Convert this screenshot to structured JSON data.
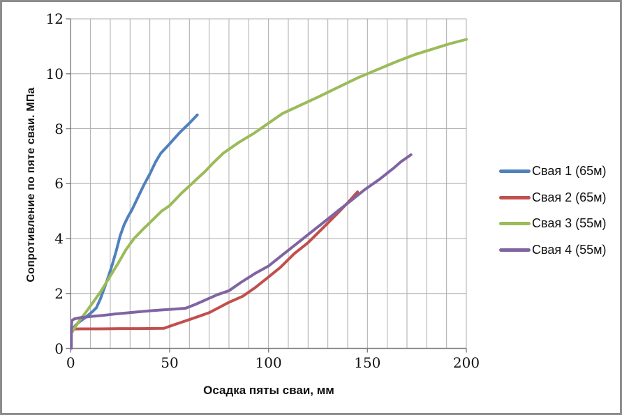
{
  "window": {
    "background_color": "#FFFFFF",
    "border_color": "#8C8C8C"
  },
  "chart_data": {
    "type": "line",
    "title": "",
    "xlabel": "Осадка пяты сваи, мм",
    "ylabel": "Сопротивление по пяте сваи. МПа",
    "xlim": [
      0,
      200
    ],
    "ylim": [
      0,
      12
    ],
    "x_ticks": [
      0,
      50,
      100,
      150,
      200
    ],
    "y_ticks": [
      0,
      2,
      4,
      6,
      8,
      10,
      12
    ],
    "x_tick_labels": [
      "0",
      "50",
      "100",
      "150",
      "200"
    ],
    "y_tick_labels": [
      "0",
      "2",
      "4",
      "6",
      "8",
      "10",
      "12"
    ],
    "x_minor_grid_step": 10,
    "y_major_grid_step": 2,
    "grid": true,
    "grid_color": "#ABABAB",
    "axis_color": "#7F7F7F",
    "legend_position": "right",
    "series": [
      {
        "name": "Свая 1 (65м)",
        "color": "#4F81BD",
        "points": [
          [
            0.5,
            0.62
          ],
          [
            1,
            0.72
          ],
          [
            3,
            0.88
          ],
          [
            5,
            1.0
          ],
          [
            7,
            1.1
          ],
          [
            9,
            1.22
          ],
          [
            11,
            1.34
          ],
          [
            13,
            1.48
          ],
          [
            15,
            1.8
          ],
          [
            17,
            2.2
          ],
          [
            19,
            2.6
          ],
          [
            21,
            3.05
          ],
          [
            23,
            3.55
          ],
          [
            25,
            4.1
          ],
          [
            27,
            4.5
          ],
          [
            29,
            4.8
          ],
          [
            31,
            5.05
          ],
          [
            34,
            5.5
          ],
          [
            37,
            5.95
          ],
          [
            40,
            6.35
          ],
          [
            43,
            6.8
          ],
          [
            45.5,
            7.1
          ],
          [
            50,
            7.45
          ],
          [
            55,
            7.85
          ],
          [
            60,
            8.2
          ],
          [
            64,
            8.5
          ]
        ]
      },
      {
        "name": "Свая 2 (65м)",
        "color": "#C0504D",
        "points": [
          [
            0.6,
            0.7
          ],
          [
            5,
            0.71
          ],
          [
            15,
            0.71
          ],
          [
            25,
            0.72
          ],
          [
            35,
            0.72
          ],
          [
            47,
            0.73
          ],
          [
            53,
            0.88
          ],
          [
            60,
            1.05
          ],
          [
            66,
            1.2
          ],
          [
            70,
            1.3
          ],
          [
            74,
            1.45
          ],
          [
            80,
            1.68
          ],
          [
            87,
            1.9
          ],
          [
            93,
            2.2
          ],
          [
            100,
            2.6
          ],
          [
            106,
            2.95
          ],
          [
            113,
            3.45
          ],
          [
            120,
            3.85
          ],
          [
            127,
            4.35
          ],
          [
            134,
            4.85
          ],
          [
            140,
            5.3
          ],
          [
            145,
            5.7
          ]
        ]
      },
      {
        "name": "Свая 3 (55м)",
        "color": "#9BBB59",
        "points": [
          [
            1,
            0.62
          ],
          [
            2,
            0.75
          ],
          [
            3,
            0.85
          ],
          [
            5,
            1.08
          ],
          [
            7,
            1.25
          ],
          [
            9,
            1.45
          ],
          [
            12,
            1.75
          ],
          [
            15,
            2.05
          ],
          [
            18,
            2.4
          ],
          [
            21,
            2.75
          ],
          [
            24,
            3.1
          ],
          [
            28,
            3.6
          ],
          [
            32,
            4.0
          ],
          [
            36,
            4.3
          ],
          [
            41,
            4.65
          ],
          [
            46,
            5.0
          ],
          [
            50,
            5.2
          ],
          [
            56,
            5.65
          ],
          [
            62,
            6.05
          ],
          [
            68,
            6.45
          ],
          [
            72,
            6.75
          ],
          [
            77,
            7.1
          ],
          [
            85,
            7.5
          ],
          [
            93,
            7.85
          ],
          [
            100,
            8.2
          ],
          [
            107,
            8.55
          ],
          [
            116,
            8.85
          ],
          [
            125,
            9.15
          ],
          [
            135,
            9.5
          ],
          [
            145,
            9.85
          ],
          [
            155,
            10.15
          ],
          [
            165,
            10.45
          ],
          [
            174,
            10.7
          ],
          [
            183,
            10.9
          ],
          [
            192,
            11.1
          ],
          [
            200,
            11.25
          ]
        ]
      },
      {
        "name": "Свая 4 (55м)",
        "color": "#8064A2",
        "points": [
          [
            0.3,
            0
          ],
          [
            0.35,
            0.8
          ],
          [
            0.6,
            1.02
          ],
          [
            2,
            1.08
          ],
          [
            5,
            1.12
          ],
          [
            10,
            1.16
          ],
          [
            16,
            1.2
          ],
          [
            22,
            1.25
          ],
          [
            28,
            1.29
          ],
          [
            34,
            1.33
          ],
          [
            40,
            1.37
          ],
          [
            46,
            1.4
          ],
          [
            52,
            1.43
          ],
          [
            58,
            1.46
          ],
          [
            63,
            1.6
          ],
          [
            68,
            1.76
          ],
          [
            74,
            1.95
          ],
          [
            80,
            2.1
          ],
          [
            86,
            2.4
          ],
          [
            93,
            2.72
          ],
          [
            100,
            3.0
          ],
          [
            107,
            3.4
          ],
          [
            114,
            3.8
          ],
          [
            121,
            4.2
          ],
          [
            128,
            4.6
          ],
          [
            135,
            5.0
          ],
          [
            142,
            5.4
          ],
          [
            149,
            5.8
          ],
          [
            156,
            6.15
          ],
          [
            163,
            6.55
          ],
          [
            167,
            6.8
          ],
          [
            172,
            7.05
          ]
        ]
      }
    ]
  }
}
